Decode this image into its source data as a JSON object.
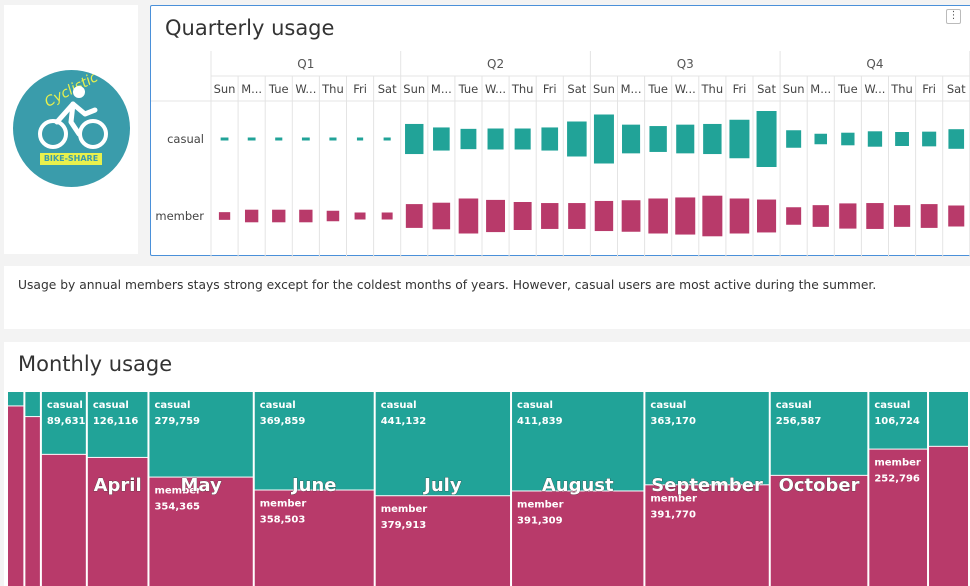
{
  "logo": {
    "brand_top": "Cyclistic",
    "brand_bottom": "BIKE-SHARE"
  },
  "quarterly": {
    "title": "Quarterly usage",
    "more_icon": "more-vertical-icon",
    "row_labels": [
      "casual",
      "member"
    ]
  },
  "note": {
    "text": "Usage by annual members stays strong except for the coldest months of years. However, casual users are most active during the summer."
  },
  "monthly": {
    "title": "Monthly usage"
  },
  "colors": {
    "casual": "#21a398",
    "member": "#b83a6a",
    "text": "#333333"
  },
  "chart_data": [
    {
      "type": "heatmap",
      "title": "Quarterly usage",
      "quarters": [
        "Q1",
        "Q2",
        "Q3",
        "Q4"
      ],
      "days": [
        "Sun",
        "M...",
        "Tue",
        "W...",
        "Thu",
        "Fri",
        "Sat"
      ],
      "series": [
        {
          "name": "casual",
          "values": [
            [
              0.03,
              0.03,
              0.02,
              0.03,
              0.02,
              0.01,
              0.02
            ],
            [
              0.43,
              0.33,
              0.29,
              0.3,
              0.3,
              0.33,
              0.5
            ],
            [
              0.7,
              0.41,
              0.37,
              0.41,
              0.43,
              0.55,
              0.8
            ],
            [
              0.25,
              0.15,
              0.18,
              0.22,
              0.2,
              0.21,
              0.28
            ]
          ]
        },
        {
          "name": "member",
          "values": [
            [
              0.11,
              0.18,
              0.18,
              0.18,
              0.15,
              0.1,
              0.1
            ],
            [
              0.34,
              0.38,
              0.5,
              0.46,
              0.4,
              0.37,
              0.37
            ],
            [
              0.43,
              0.45,
              0.5,
              0.53,
              0.58,
              0.5,
              0.47
            ],
            [
              0.25,
              0.31,
              0.36,
              0.37,
              0.31,
              0.34,
              0.3
            ]
          ]
        }
      ]
    },
    {
      "type": "treemap",
      "title": "Monthly usage",
      "months": [
        {
          "name": "",
          "casual": 7785,
          "member": 96834
        },
        {
          "name": "",
          "casual": 12870,
          "member": 86634
        },
        {
          "name": "",
          "casual": 89631,
          "member": 187000
        },
        {
          "name": "April",
          "casual": 126116,
          "member": 245000
        },
        {
          "name": "May",
          "casual": 279759,
          "member": 354365
        },
        {
          "name": "June",
          "casual": 369859,
          "member": 358503
        },
        {
          "name": "July",
          "casual": 441132,
          "member": 379913
        },
        {
          "name": "August",
          "casual": 411839,
          "member": 391309
        },
        {
          "name": "September",
          "casual": 363170,
          "member": 391770
        },
        {
          "name": "October",
          "casual": 256587,
          "member": 337000
        },
        {
          "name": "",
          "casual": 106724,
          "member": 252796
        },
        {
          "name": "",
          "casual": 69738,
          "member": 177000
        }
      ],
      "shown_labels": {
        "casual": [
          "89,631",
          "126,116",
          "279,759",
          "369,859",
          "441,132",
          "411,839",
          "363,170",
          "256,587",
          "106,724"
        ],
        "member": [
          "354,365",
          "358,503",
          "379,913",
          "391,309",
          "391,770",
          "252,796"
        ]
      },
      "series_labels": [
        "casual",
        "member"
      ]
    }
  ]
}
